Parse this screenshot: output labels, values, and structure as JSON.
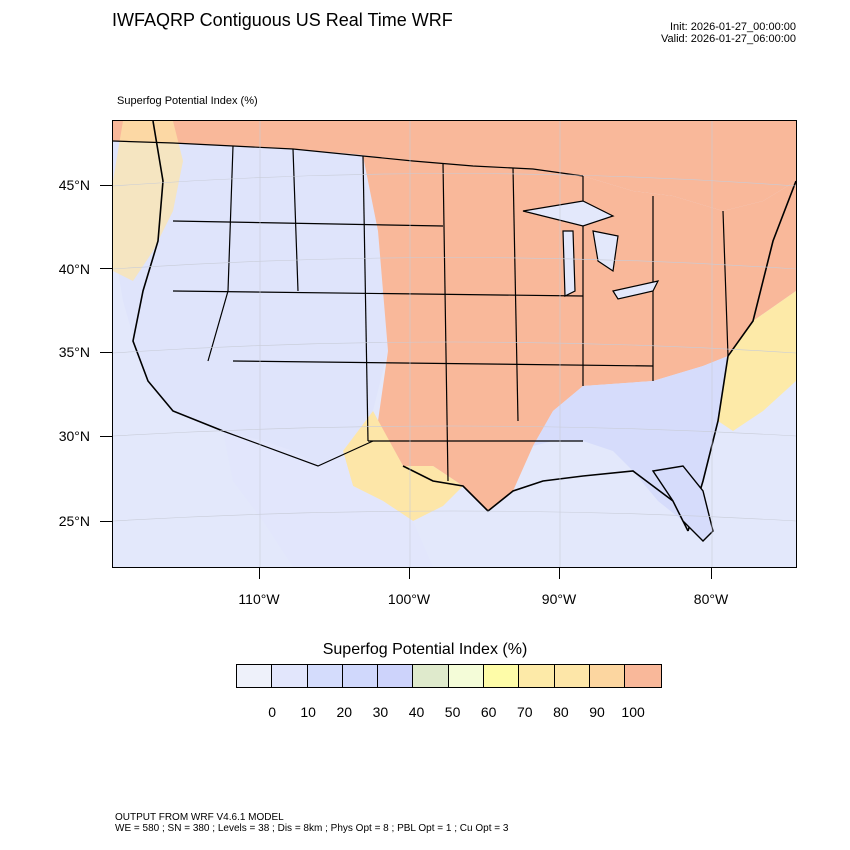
{
  "title": "IWFAQRP Contiguous US Real Time WRF",
  "init_time": "Init: 2026-01-27_00:00:00",
  "valid_time": "Valid: 2026-01-27_06:00:00",
  "field_label": "Superfog Potential Index   (%)",
  "latitude_labels": [
    "45°N",
    "40°N",
    "35°N",
    "30°N",
    "25°N"
  ],
  "longitude_labels": [
    "110°W",
    "100°W",
    "90°W",
    "80°W"
  ],
  "colorbar": {
    "title": "Superfog Potential Index  (%)",
    "colors": [
      "#eef1fa",
      "#e2e6fc",
      "#d4dcfc",
      "#d0d8fc",
      "#cdd3fb",
      "#dfeacc",
      "#f4fcd8",
      "#fefca8",
      "#fdeaa8",
      "#fde6a8",
      "#fcd6a0",
      "#f9b89a"
    ],
    "labels": [
      "0",
      "10",
      "20",
      "30",
      "40",
      "50",
      "60",
      "70",
      "80",
      "90",
      "100"
    ]
  },
  "footer": {
    "line1": "OUTPUT FROM WRF V4.6.1 MODEL",
    "line2": "WE = 580 ; SN = 380 ; Levels = 38 ; Dis = 8km ; Phys Opt = 8 ; PBL Opt = 1 ; Cu Opt = 3"
  }
}
